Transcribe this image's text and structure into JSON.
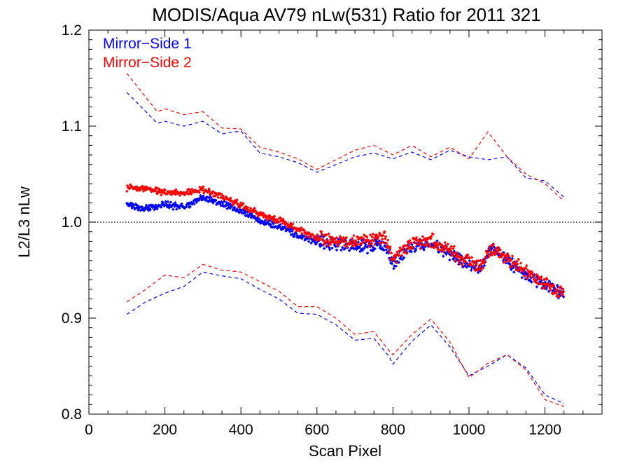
{
  "chart_data": {
    "type": "scatter",
    "title": "MODIS/Aqua AV79 nLw(531) Ratio for 2011 321",
    "xlabel": "Scan Pixel",
    "ylabel": "L2/L3 nLw",
    "xlim": [
      0,
      1350
    ],
    "ylim": [
      0.8,
      1.2
    ],
    "x_ticks": [
      0,
      200,
      400,
      600,
      800,
      1000,
      1200
    ],
    "x_tick_labels": [
      "0",
      "200",
      "400",
      "600",
      "800",
      "1000",
      "1200"
    ],
    "y_ticks": [
      0.8,
      0.9,
      1.0,
      1.1,
      1.2
    ],
    "y_tick_labels": [
      "0.8",
      "0.9",
      "1.0",
      "1.1",
      "1.2"
    ],
    "reference_line": {
      "y": 1.0,
      "style": "dotted",
      "color": "#000000"
    },
    "legend_position": "top-left",
    "series": [
      {
        "name": "Mirror−Side 1",
        "color": "#0000ff",
        "mean": {
          "x": [
            100,
            150,
            200,
            250,
            300,
            350,
            400,
            450,
            500,
            550,
            600,
            650,
            700,
            750,
            780,
            800,
            850,
            900,
            950,
            1000,
            1030,
            1060,
            1100,
            1150,
            1200,
            1250
          ],
          "y": [
            1.018,
            1.014,
            1.018,
            1.016,
            1.026,
            1.019,
            1.012,
            1.001,
            0.996,
            0.986,
            0.979,
            0.978,
            0.975,
            0.975,
            0.977,
            0.958,
            0.974,
            0.978,
            0.967,
            0.955,
            0.952,
            0.975,
            0.96,
            0.945,
            0.934,
            0.926
          ]
        },
        "upper_bound": {
          "x": [
            100,
            150,
            180,
            200,
            250,
            300,
            350,
            400,
            450,
            500,
            550,
            600,
            650,
            700,
            750,
            800,
            850,
            900,
            950,
            1000,
            1050,
            1100,
            1150,
            1200,
            1250
          ],
          "y": [
            1.135,
            1.115,
            1.103,
            1.105,
            1.1,
            1.105,
            1.092,
            1.095,
            1.072,
            1.068,
            1.062,
            1.052,
            1.06,
            1.068,
            1.072,
            1.066,
            1.073,
            1.065,
            1.075,
            1.068,
            1.065,
            1.068,
            1.046,
            1.043,
            1.026
          ]
        },
        "lower_bound": {
          "x": [
            100,
            150,
            200,
            250,
            300,
            350,
            400,
            450,
            500,
            550,
            600,
            650,
            700,
            750,
            790,
            800,
            850,
            900,
            950,
            1000,
            1050,
            1100,
            1150,
            1200,
            1250
          ],
          "y": [
            0.904,
            0.917,
            0.926,
            0.933,
            0.948,
            0.944,
            0.941,
            0.93,
            0.92,
            0.905,
            0.904,
            0.893,
            0.877,
            0.879,
            0.86,
            0.852,
            0.876,
            0.893,
            0.87,
            0.84,
            0.85,
            0.862,
            0.848,
            0.82,
            0.811
          ]
        }
      },
      {
        "name": "Mirror−Side 2",
        "color": "#ff0000",
        "mean": {
          "x": [
            100,
            150,
            200,
            250,
            300,
            350,
            400,
            450,
            500,
            550,
            600,
            650,
            700,
            750,
            780,
            800,
            850,
            900,
            950,
            1000,
            1030,
            1060,
            1100,
            1150,
            1200,
            1250
          ],
          "y": [
            1.036,
            1.034,
            1.031,
            1.03,
            1.034,
            1.026,
            1.018,
            1.008,
            1.002,
            0.993,
            0.983,
            0.982,
            0.98,
            0.982,
            0.985,
            0.963,
            0.978,
            0.982,
            0.97,
            0.958,
            0.955,
            0.972,
            0.963,
            0.948,
            0.936,
            0.925
          ]
        },
        "upper_bound": {
          "x": [
            100,
            150,
            180,
            200,
            250,
            300,
            350,
            400,
            450,
            500,
            550,
            600,
            650,
            700,
            750,
            800,
            850,
            900,
            950,
            1000,
            1050,
            1100,
            1150,
            1200,
            1250
          ],
          "y": [
            1.155,
            1.13,
            1.115,
            1.118,
            1.112,
            1.115,
            1.098,
            1.097,
            1.078,
            1.073,
            1.066,
            1.055,
            1.065,
            1.075,
            1.08,
            1.07,
            1.08,
            1.068,
            1.078,
            1.066,
            1.094,
            1.068,
            1.05,
            1.04,
            1.022
          ]
        },
        "lower_bound": {
          "x": [
            100,
            150,
            200,
            250,
            300,
            350,
            400,
            450,
            500,
            550,
            600,
            650,
            700,
            750,
            790,
            800,
            850,
            900,
            950,
            1000,
            1050,
            1100,
            1150,
            1200,
            1250
          ],
          "y": [
            0.917,
            0.93,
            0.945,
            0.942,
            0.956,
            0.95,
            0.948,
            0.938,
            0.928,
            0.912,
            0.912,
            0.9,
            0.883,
            0.886,
            0.866,
            0.862,
            0.883,
            0.899,
            0.875,
            0.838,
            0.853,
            0.862,
            0.846,
            0.815,
            0.808
          ]
        }
      }
    ]
  }
}
